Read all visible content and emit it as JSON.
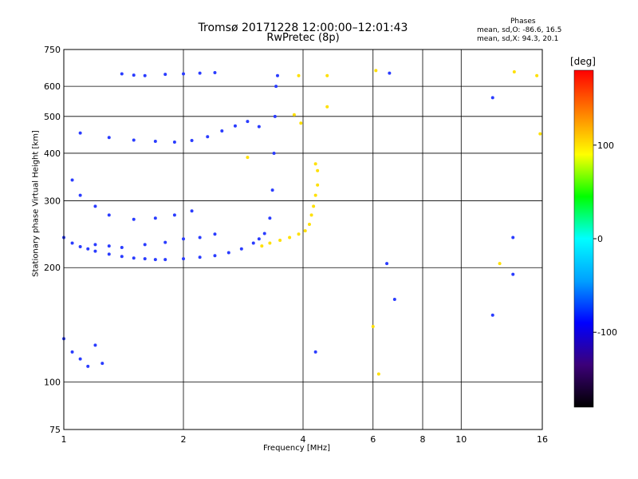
{
  "header": {
    "title": "Tromsø 20171228 12:00:00–12:01:43",
    "subtitle": "RwPretec (8p)",
    "phase_heading": "Phases",
    "stat_o": "mean, sd,O: -86.6, 16.5",
    "stat_x": "mean, sd,X:  94.3, 20.1"
  },
  "colorbar": {
    "unit": "[deg]",
    "ticks": [
      "100",
      "0",
      "-100"
    ],
    "tick_values": [
      100,
      0,
      -100
    ],
    "range": [
      -180,
      180
    ],
    "colormap": [
      "#000000",
      "#3c0078",
      "#0000ff",
      "#00a0ff",
      "#00ffff",
      "#00ff00",
      "#ffff00",
      "#ff8000",
      "#ff0000"
    ]
  },
  "chart_data": {
    "type": "scatter",
    "title": "Tromsø 20171228 12:00:00–12:01:43",
    "subtitle": "RwPretec (8p)",
    "xlabel": "Frequency [MHz]",
    "ylabel": "Stationary phase Virtual Height [km]",
    "x_scale": "log",
    "y_scale": "log",
    "xlim": [
      1,
      16
    ],
    "ylim": [
      75,
      750
    ],
    "x_ticks": [
      "1",
      "2",
      "4",
      "6",
      "8",
      "10",
      "16"
    ],
    "x_tick_values": [
      1,
      2,
      4,
      6,
      8,
      10,
      16
    ],
    "y_ticks": [
      "75",
      "100",
      "200",
      "300",
      "400",
      "500",
      "600",
      "750"
    ],
    "y_tick_values": [
      75,
      100,
      200,
      300,
      400,
      500,
      600,
      750
    ],
    "grid": true,
    "series": [
      {
        "mode": "O",
        "color": "#2a3cff",
        "points": [
          [
            1.0,
            240
          ],
          [
            1.05,
            232
          ],
          [
            1.1,
            227
          ],
          [
            1.15,
            224
          ],
          [
            1.2,
            221
          ],
          [
            1.3,
            217
          ],
          [
            1.4,
            214
          ],
          [
            1.5,
            212
          ],
          [
            1.6,
            211
          ],
          [
            1.7,
            210
          ],
          [
            1.8,
            210
          ],
          [
            2.0,
            211
          ],
          [
            2.2,
            213
          ],
          [
            2.4,
            215
          ],
          [
            2.6,
            219
          ],
          [
            2.8,
            224
          ],
          [
            3.0,
            232
          ],
          [
            3.1,
            238
          ],
          [
            3.2,
            246
          ],
          [
            3.3,
            270
          ],
          [
            3.35,
            320
          ],
          [
            3.38,
            400
          ],
          [
            3.4,
            500
          ],
          [
            3.42,
            600
          ],
          [
            3.45,
            640
          ],
          [
            1.05,
            340
          ],
          [
            1.1,
            310
          ],
          [
            1.2,
            290
          ],
          [
            1.3,
            275
          ],
          [
            1.5,
            268
          ],
          [
            1.7,
            270
          ],
          [
            1.9,
            275
          ],
          [
            2.1,
            282
          ],
          [
            1.2,
            230
          ],
          [
            1.3,
            228
          ],
          [
            1.4,
            226
          ],
          [
            1.6,
            230
          ],
          [
            1.8,
            233
          ],
          [
            2.0,
            238
          ],
          [
            2.2,
            240
          ],
          [
            2.4,
            245
          ],
          [
            1.1,
            452
          ],
          [
            1.3,
            440
          ],
          [
            1.5,
            433
          ],
          [
            1.7,
            430
          ],
          [
            1.9,
            428
          ],
          [
            2.1,
            432
          ],
          [
            2.3,
            442
          ],
          [
            2.5,
            458
          ],
          [
            2.7,
            472
          ],
          [
            2.9,
            485
          ],
          [
            3.1,
            470
          ],
          [
            1.4,
            647
          ],
          [
            1.5,
            642
          ],
          [
            1.6,
            640
          ],
          [
            1.8,
            645
          ],
          [
            2.0,
            647
          ],
          [
            2.2,
            650
          ],
          [
            2.4,
            652
          ],
          [
            1.0,
            130
          ],
          [
            1.05,
            120
          ],
          [
            1.1,
            115
          ],
          [
            1.15,
            110
          ],
          [
            1.2,
            125
          ],
          [
            1.25,
            112
          ],
          [
            6.5,
            205
          ],
          [
            12,
            560
          ],
          [
            12,
            150
          ],
          [
            13.5,
            240
          ],
          [
            13.5,
            192
          ],
          [
            6.6,
            650
          ],
          [
            4.3,
            120
          ],
          [
            6.8,
            165
          ]
        ]
      },
      {
        "mode": "X",
        "color": "#ffe000",
        "points": [
          [
            3.15,
            228
          ],
          [
            3.3,
            232
          ],
          [
            3.5,
            236
          ],
          [
            3.7,
            240
          ],
          [
            3.9,
            245
          ],
          [
            4.05,
            250
          ],
          [
            4.15,
            260
          ],
          [
            4.2,
            275
          ],
          [
            4.25,
            290
          ],
          [
            4.3,
            310
          ],
          [
            4.35,
            330
          ],
          [
            4.35,
            360
          ],
          [
            4.3,
            375
          ],
          [
            3.95,
            480
          ],
          [
            3.8,
            505
          ],
          [
            3.9,
            640
          ],
          [
            4.6,
            530
          ],
          [
            4.6,
            640
          ],
          [
            6.1,
            660
          ],
          [
            6.0,
            140
          ],
          [
            6.2,
            105
          ],
          [
            12.5,
            205
          ],
          [
            13.6,
            655
          ],
          [
            15.5,
            640
          ],
          [
            15.8,
            450
          ],
          [
            2.9,
            390
          ]
        ]
      }
    ]
  }
}
